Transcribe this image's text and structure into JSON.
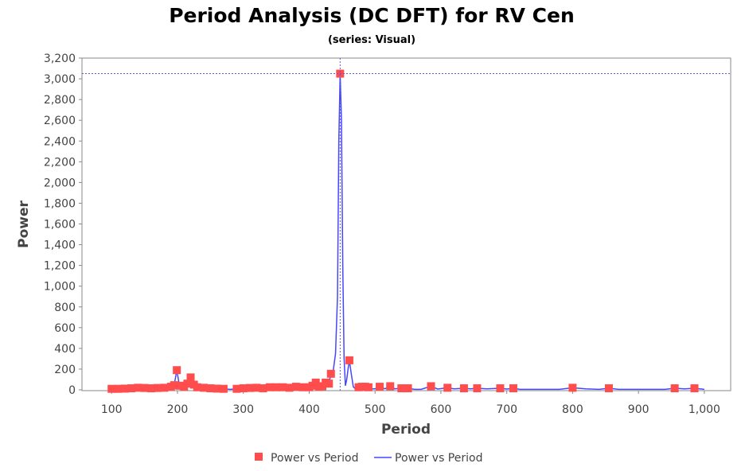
{
  "chart_data": {
    "type": "line",
    "title": "Period Analysis (DC DFT) for RV Cen",
    "subtitle": "(series: Visual)",
    "xlabel": "Period",
    "ylabel": "Power",
    "xlim": [
      55,
      1040
    ],
    "ylim": [
      0,
      3200
    ],
    "xticks": [
      100,
      200,
      300,
      400,
      500,
      600,
      700,
      800,
      900,
      1000
    ],
    "xtick_labels": [
      "100",
      "200",
      "300",
      "400",
      "500",
      "600",
      "700",
      "800",
      "900",
      "1,000"
    ],
    "yticks": [
      0,
      200,
      400,
      600,
      800,
      1000,
      1200,
      1400,
      1600,
      1800,
      2000,
      2200,
      2400,
      2600,
      2800,
      3000,
      3200
    ],
    "ytick_labels": [
      "0",
      "200",
      "400",
      "600",
      "800",
      "1,000",
      "1,200",
      "1,400",
      "1,600",
      "1,800",
      "2,000",
      "2,200",
      "2,400",
      "2,600",
      "2,800",
      "3,000",
      "3,200"
    ],
    "crosshair": {
      "x": 447,
      "y": 3050
    },
    "legend": [
      "Power vs Period",
      "Power vs Period"
    ],
    "legend_position": "bottom",
    "colors": {
      "markers": "#ff4c4c",
      "line": "#4646ff",
      "crosshair": "#5b5bd6"
    },
    "series": [
      {
        "name": "Power vs Period",
        "kind": "markers",
        "x": [
          100,
          110,
          120,
          130,
          140,
          150,
          160,
          170,
          180,
          190,
          195,
          199,
          203,
          210,
          215,
          220,
          225,
          230,
          240,
          250,
          260,
          270,
          290,
          300,
          310,
          320,
          330,
          340,
          350,
          360,
          370,
          380,
          390,
          400,
          405,
          410,
          415,
          420,
          425,
          430,
          433,
          447,
          461,
          475,
          480,
          485,
          490,
          507,
          523,
          540,
          550,
          585,
          610,
          635,
          655,
          690,
          710,
          800,
          855,
          955,
          985
        ],
        "y": [
          10,
          10,
          12,
          15,
          20,
          18,
          15,
          18,
          20,
          30,
          45,
          190,
          40,
          30,
          60,
          120,
          50,
          25,
          20,
          15,
          12,
          10,
          10,
          15,
          18,
          20,
          15,
          25,
          25,
          25,
          20,
          30,
          25,
          25,
          40,
          70,
          30,
          35,
          70,
          60,
          155,
          3050,
          285,
          25,
          30,
          30,
          25,
          30,
          35,
          15,
          15,
          35,
          20,
          15,
          15,
          15,
          15,
          20,
          15,
          15,
          15
        ]
      },
      {
        "name": "Power vs Period",
        "kind": "line",
        "x": [
          100,
          110,
          120,
          130,
          140,
          150,
          160,
          170,
          180,
          190,
          195,
          199,
          203,
          210,
          215,
          220,
          225,
          230,
          240,
          250,
          260,
          270,
          280,
          290,
          300,
          310,
          320,
          330,
          340,
          350,
          360,
          370,
          380,
          390,
          400,
          405,
          410,
          415,
          420,
          425,
          430,
          433,
          436,
          440,
          443,
          445,
          447,
          449,
          451,
          453,
          455,
          457,
          459,
          461,
          464,
          467,
          470,
          475,
          480,
          485,
          490,
          495,
          500,
          507,
          515,
          523,
          530,
          540,
          550,
          560,
          570,
          585,
          595,
          610,
          620,
          635,
          645,
          655,
          670,
          690,
          700,
          710,
          720,
          750,
          780,
          800,
          820,
          840,
          855,
          870,
          900,
          940,
          955,
          970,
          985,
          1000
        ],
        "y": [
          10,
          10,
          12,
          15,
          20,
          18,
          15,
          18,
          20,
          30,
          45,
          190,
          40,
          30,
          60,
          120,
          50,
          25,
          20,
          15,
          12,
          10,
          5,
          10,
          15,
          18,
          20,
          15,
          25,
          25,
          25,
          20,
          30,
          25,
          25,
          40,
          70,
          30,
          35,
          70,
          60,
          155,
          160,
          350,
          900,
          2400,
          3050,
          2600,
          1200,
          300,
          40,
          100,
          200,
          285,
          150,
          30,
          10,
          25,
          30,
          30,
          25,
          10,
          10,
          30,
          10,
          35,
          10,
          15,
          15,
          5,
          5,
          35,
          8,
          20,
          10,
          15,
          10,
          15,
          10,
          15,
          8,
          15,
          5,
          5,
          5,
          20,
          10,
          5,
          15,
          5,
          5,
          5,
          15,
          10,
          15,
          5
        ]
      }
    ]
  }
}
